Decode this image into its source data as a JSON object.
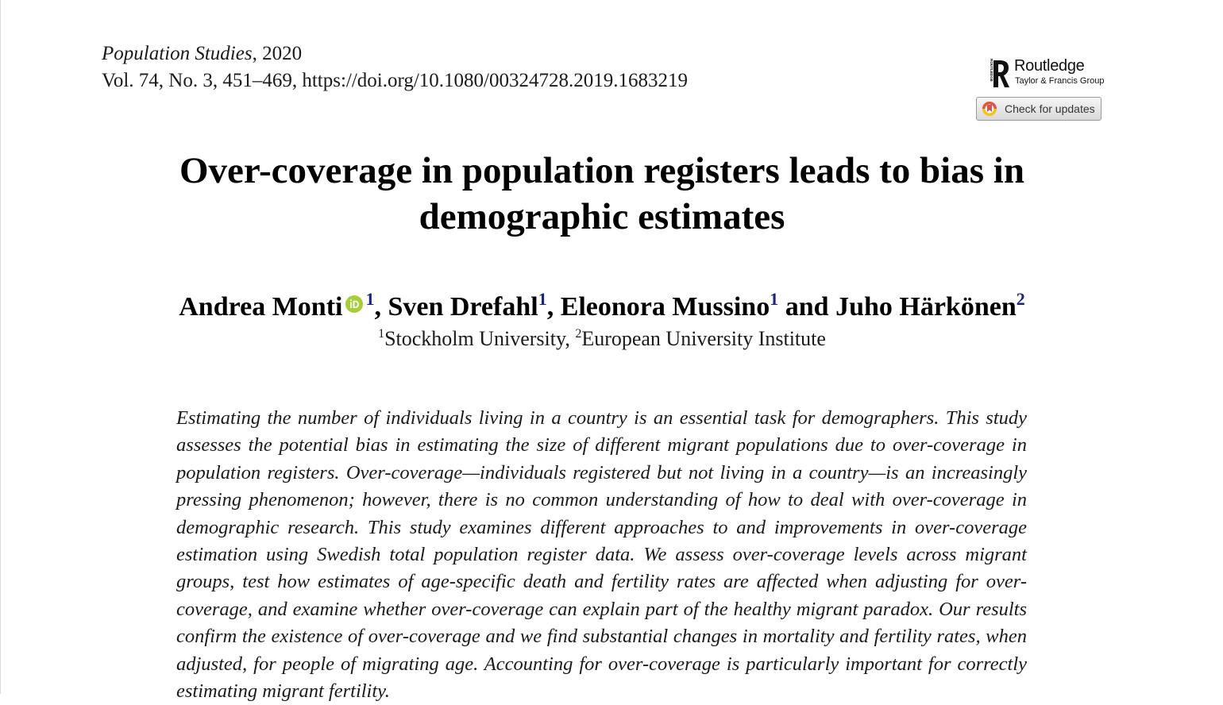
{
  "journal": {
    "name": "Population Studies",
    "year_sep": ", 2020",
    "citation": "Vol. 74, No. 3, 451–469, https://doi.org/10.1080/00324728.2019.1683219"
  },
  "publisher": {
    "icon": "routledge-r-logo",
    "name": "Routledge",
    "subtitle": "Taylor & Francis Group",
    "logo_side_text": "ROUTLEDGE"
  },
  "updates_button": {
    "icon": "crossmark-icon",
    "label": "Check for updates"
  },
  "title": "Over-coverage in population registers leads to bias in demographic estimates",
  "authors": [
    {
      "name": "Andrea Monti",
      "orcid": true,
      "affil": "1",
      "sep": ", "
    },
    {
      "name": "Sven Drefahl",
      "orcid": false,
      "affil": "1",
      "sep": ", "
    },
    {
      "name": "Eleonora Mussino",
      "orcid": false,
      "affil": "1",
      "sep": " and "
    },
    {
      "name": "Juho Härkönen",
      "orcid": false,
      "affil": "2",
      "sep": ""
    }
  ],
  "affiliations": [
    {
      "mark": "1",
      "name": "Stockholm University",
      "sep": ", "
    },
    {
      "mark": "2",
      "name": "European University Institute",
      "sep": ""
    }
  ],
  "abstract": "Estimating the number of individuals living in a country is an essential task for demographers. This study assesses the potential bias in estimating the size of different migrant populations due to over-coverage in population registers. Over-coverage—individuals registered but not living in a country—is an increasingly pressing phenomenon; however, there is no common understanding of how to deal with over-coverage in demographic research. This study examines different approaches to and improvements in over-coverage estimation using Swedish total population register data. We assess over-coverage levels across migrant groups, test how estimates of age-specific death and fertility rates are affected when adjusting for over-coverage, and examine whether over-coverage can explain part of the healthy migrant paradox. Our results confirm the existence of over-coverage and we find substantial changes in mortality and fertility rates, when adjusted, for people of migrating age. Accounting for over-coverage is particularly important for correctly estimating migrant fertility.",
  "colors": {
    "orcid_green": "#a6ce39",
    "affil_sup": "#1a237e",
    "crossmark_red": "#d9534f",
    "crossmark_yellow": "#f0c419"
  }
}
